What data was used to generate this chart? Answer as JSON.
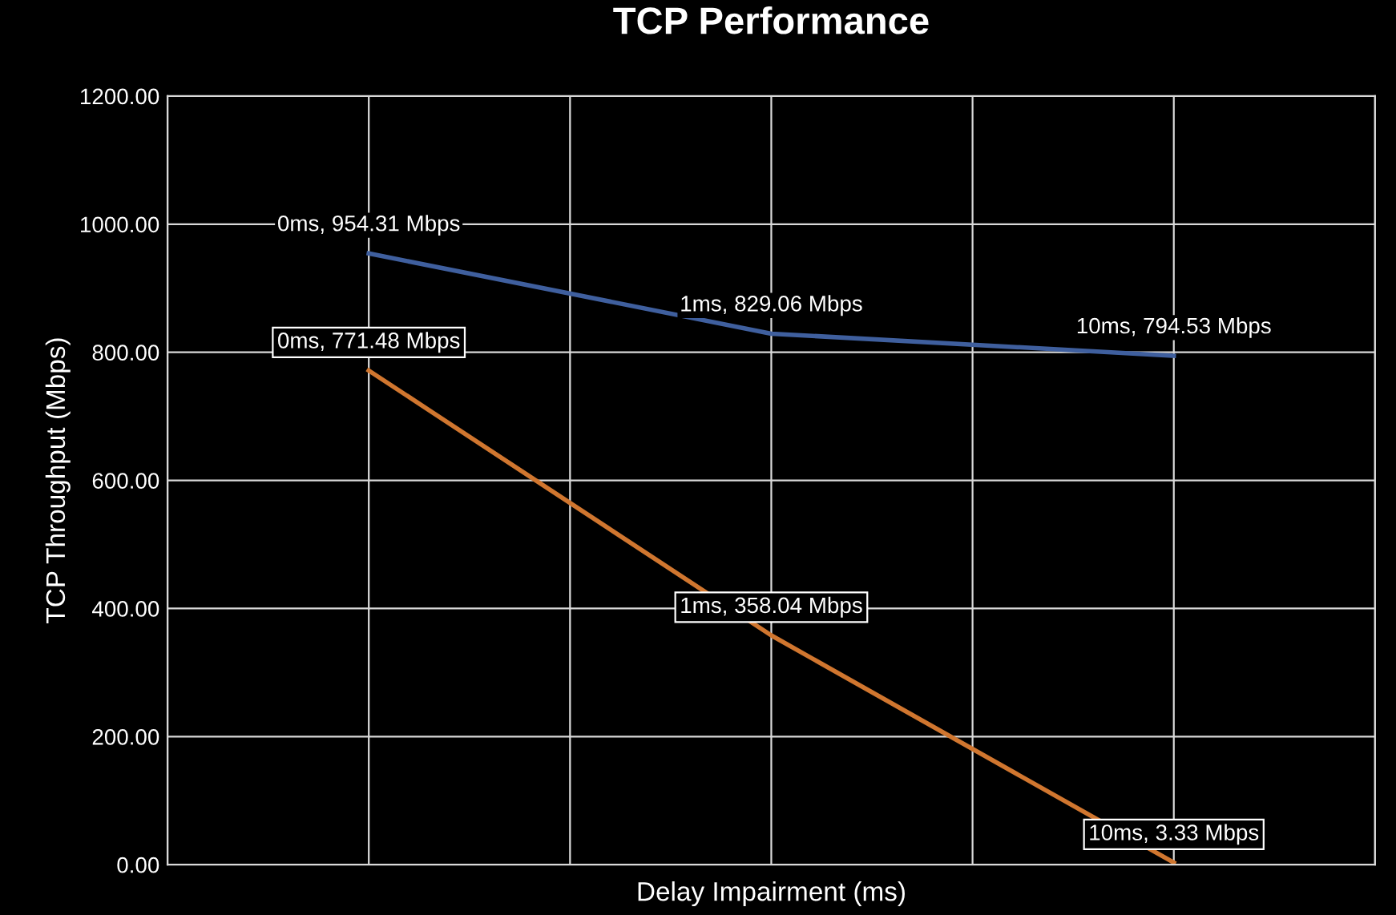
{
  "chart_data": {
    "type": "line",
    "title": "TCP Performance",
    "xlabel": "Delay Impairment (ms)",
    "ylabel": "TCP Throughput (Mbps)",
    "categories": [
      null,
      null,
      null
    ],
    "series": [
      {
        "color": "#3f5f9e",
        "values": [
          954.31,
          829.06,
          794.53
        ],
        "value_labels": [
          "0ms, 954.31 Mbps",
          "1ms, 829.06 Mbps",
          "10ms, 794.53 Mbps"
        ]
      },
      {
        "color": "#d0762f",
        "values": [
          771.48,
          358.04,
          3.33
        ],
        "value_labels": [
          "0ms, 771.48 Mbps",
          "1ms, 358.04 Mbps",
          "10ms, 3.33 Mbps"
        ]
      }
    ],
    "ylim": [
      0,
      1200
    ],
    "yticks": [
      {
        "value": 0,
        "label": "0.00"
      },
      {
        "value": 200,
        "label": "200.00"
      },
      {
        "value": 400,
        "label": "400.00"
      },
      {
        "value": 600,
        "label": "600.00"
      },
      {
        "value": 800,
        "label": "800.00"
      },
      {
        "value": 1000,
        "label": "1000.00"
      },
      {
        "value": 1200,
        "label": "1200.00"
      }
    ],
    "grid": true,
    "marker": "none",
    "line_style": "solid"
  }
}
